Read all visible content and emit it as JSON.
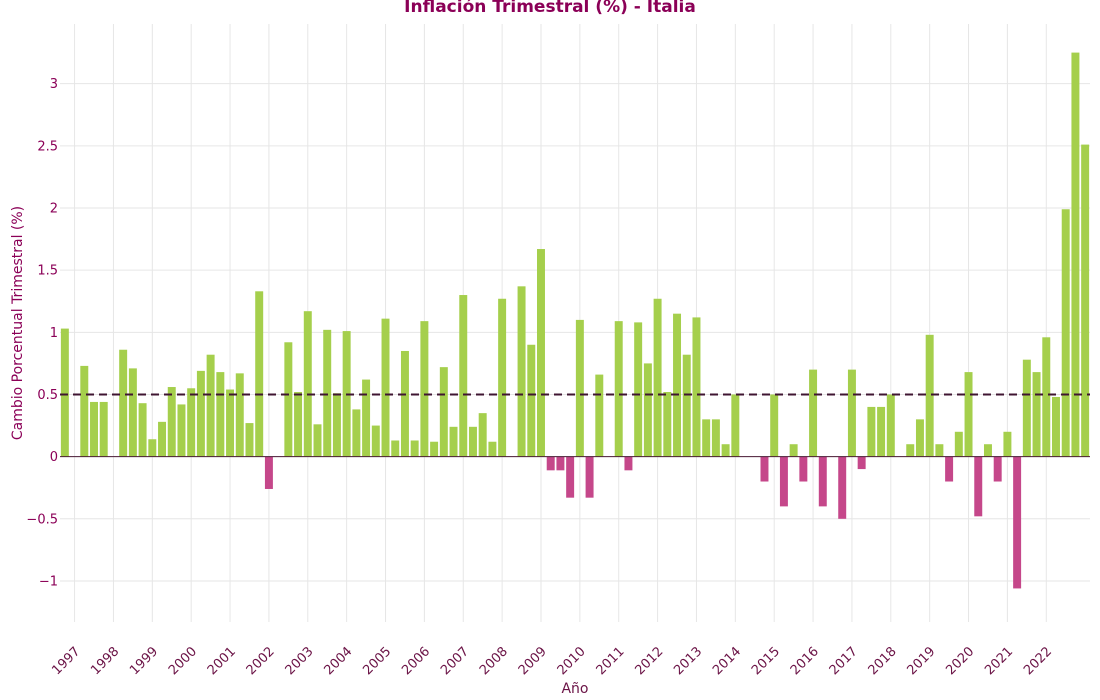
{
  "colors": {
    "positive": "#a5cf4c",
    "negative": "#c5478a",
    "title": "#8b0057",
    "axis_text": "#6b1346",
    "ref_line": "#3f1531",
    "grid": "#e6e6e6",
    "zero_line": "#4a1b35"
  },
  "chart_data": {
    "type": "bar",
    "title": "Inflación Trimestral (%) - Italia",
    "xlabel": "Año",
    "ylabel": "Cambio Porcentual Trimestral (%)",
    "ylim": [
      -1.33,
      3.48
    ],
    "yticks": [
      -1,
      -0.5,
      0,
      0.5,
      1,
      1.5,
      2,
      2.5,
      3
    ],
    "ytick_labels": [
      "−1",
      "−0.5",
      "0",
      "0.5",
      "1",
      "1.5",
      "2",
      "2.5",
      "3"
    ],
    "reference_line": 0.5,
    "grid": true,
    "legend": "none",
    "year_labels": [
      "1997",
      "1998",
      "1999",
      "2000",
      "2001",
      "2002",
      "2003",
      "2004",
      "2005",
      "2006",
      "2007",
      "2008",
      "2009",
      "2010",
      "2011",
      "2012",
      "2013",
      "2014",
      "2015",
      "2016",
      "2017",
      "2018",
      "2019",
      "2020",
      "2021",
      "2022"
    ],
    "first_quarter": "1996-Q4",
    "values": [
      1.03,
      0,
      0.73,
      0.44,
      0.44,
      0,
      0.86,
      0.71,
      0.43,
      0.14,
      0.28,
      0.56,
      0.42,
      0.55,
      0.69,
      0.82,
      0.68,
      0.54,
      0.67,
      0.27,
      1.33,
      -0.26,
      0,
      0.92,
      0.52,
      1.17,
      0.26,
      1.02,
      0.51,
      1.01,
      0.38,
      0.62,
      0.25,
      1.11,
      0.13,
      0.85,
      0.13,
      1.09,
      0.12,
      0.72,
      0.24,
      1.3,
      0.24,
      0.35,
      0.12,
      1.27,
      0,
      1.37,
      0.9,
      1.67,
      -0.11,
      -0.11,
      -0.33,
      1.1,
      -0.33,
      0.66,
      0,
      1.09,
      -0.11,
      1.08,
      0.75,
      1.27,
      0.52,
      1.15,
      0.82,
      1.12,
      0.3,
      0.3,
      0.1,
      0.5,
      0,
      0,
      -0.2,
      0.5,
      -0.4,
      0.1,
      -0.2,
      0.7,
      -0.4,
      0,
      -0.5,
      0.7,
      -0.1,
      0.4,
      0.4,
      0.5,
      0,
      0.1,
      0.3,
      0.98,
      0.1,
      -0.2,
      0.2,
      0.68,
      -0.48,
      0.1,
      -0.2,
      0.2,
      -1.06,
      0.78,
      0.68,
      0.96,
      0.48,
      1.99,
      3.25,
      2.51
    ]
  }
}
